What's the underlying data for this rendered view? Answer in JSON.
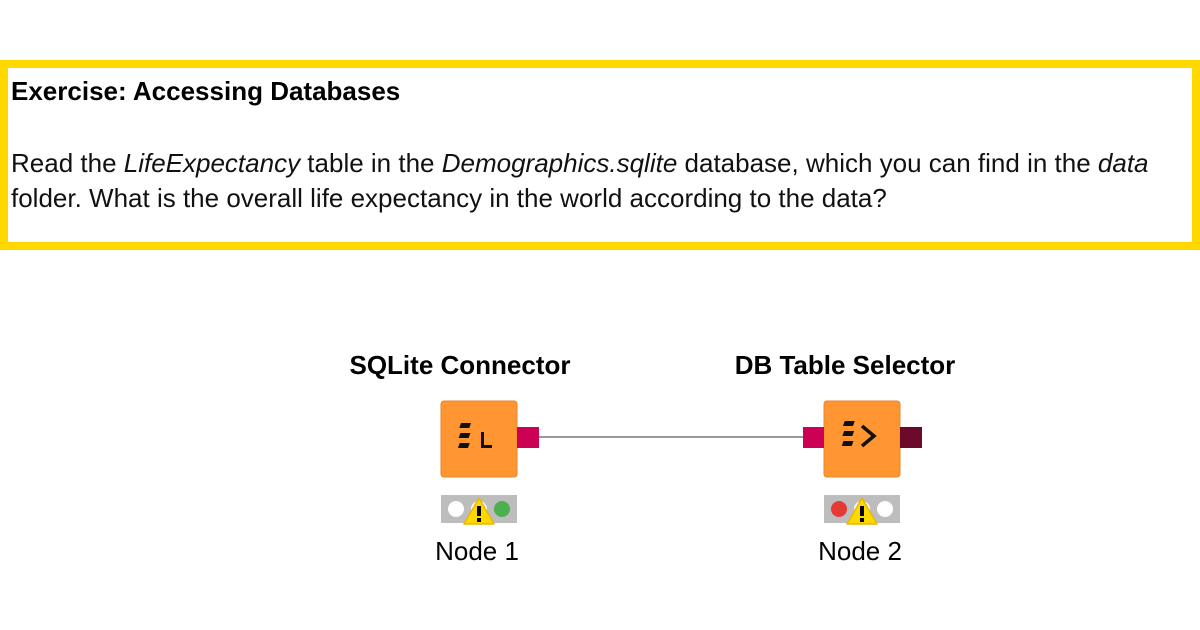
{
  "annotation": {
    "title": "Exercise: Accessing Databases",
    "body": [
      "Read the ",
      "LifeExpectancy",
      " table in the ",
      "Demographics.sqlite",
      " database, which you can find in the ",
      "data",
      " folder. What is the overall life expectancy in the world according to the data?"
    ]
  },
  "nodes": [
    {
      "title": "SQLite Connector",
      "label": "Node 1"
    },
    {
      "title": "DB Table Selector",
      "label": "Node 2"
    }
  ]
}
